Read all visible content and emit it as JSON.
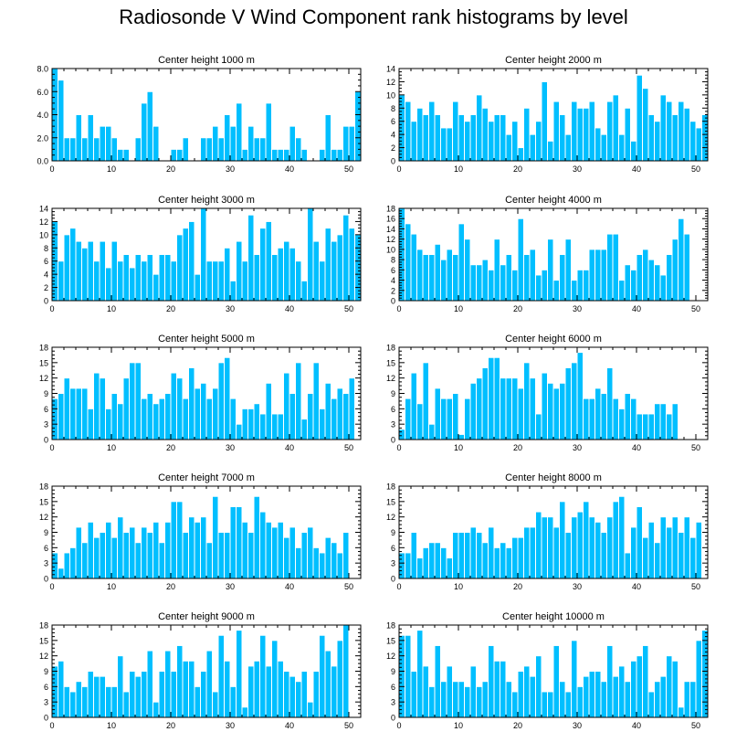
{
  "title": "Radiosonde V Wind Component rank histograms by level",
  "colors": {
    "bar": "#00BFFF",
    "bar_edge": "#ffffff",
    "axis": "#000000"
  },
  "chart_data": [
    {
      "type": "bar",
      "title": "Center height 1000 m",
      "xlim": [
        0,
        52
      ],
      "ylim": [
        0,
        8
      ],
      "yticks": [
        0,
        2,
        4,
        6,
        8
      ],
      "ytick_labels": [
        "0.0",
        "2.0",
        "4.0",
        "6.0",
        "8.0"
      ],
      "xticks": [
        0,
        10,
        20,
        30,
        40,
        50
      ],
      "values": [
        8,
        7,
        2,
        2,
        4,
        2,
        4,
        2,
        3,
        3,
        2,
        1,
        1,
        0,
        2,
        5,
        6,
        3,
        0,
        0,
        1,
        1,
        2,
        0,
        0,
        2,
        2,
        3,
        2,
        4,
        3,
        5,
        1,
        3,
        2,
        2,
        5,
        1,
        1,
        1,
        3,
        2,
        1,
        0,
        0,
        1,
        4,
        1,
        1,
        3,
        3,
        6
      ]
    },
    {
      "type": "bar",
      "title": "Center height 2000 m",
      "xlim": [
        0,
        52
      ],
      "ylim": [
        0,
        14
      ],
      "yticks": [
        0,
        2,
        4,
        6,
        8,
        10,
        12,
        14
      ],
      "ytick_labels": [
        "0",
        "2",
        "4",
        "6",
        "8",
        "10",
        "12",
        "14"
      ],
      "xticks": [
        0,
        10,
        20,
        30,
        40,
        50
      ],
      "values": [
        10,
        9,
        6,
        8,
        7,
        9,
        7,
        5,
        5,
        9,
        7,
        6,
        7,
        10,
        8,
        6,
        7,
        7,
        4,
        6,
        2,
        8,
        4,
        6,
        12,
        3,
        9,
        7,
        4,
        9,
        8,
        8,
        9,
        5,
        4,
        9,
        10,
        4,
        8,
        3,
        13,
        11,
        7,
        6,
        10,
        9,
        7,
        9,
        8,
        6,
        5,
        7
      ]
    },
    {
      "type": "bar",
      "title": "Center height 3000 m",
      "xlim": [
        0,
        52
      ],
      "ylim": [
        0,
        14
      ],
      "yticks": [
        0,
        2,
        4,
        6,
        8,
        10,
        12,
        14
      ],
      "ytick_labels": [
        "0",
        "2",
        "4",
        "6",
        "8",
        "10",
        "12",
        "14"
      ],
      "xticks": [
        0,
        10,
        20,
        30,
        40,
        50
      ],
      "values": [
        12,
        6,
        10,
        11,
        9,
        8,
        9,
        6,
        9,
        5,
        9,
        6,
        7,
        5,
        7,
        6,
        7,
        4,
        7,
        7,
        6,
        10,
        11,
        12,
        4,
        14,
        6,
        6,
        6,
        8,
        3,
        9,
        6,
        13,
        7,
        11,
        12,
        7,
        8,
        9,
        8,
        6,
        3,
        14,
        9,
        6,
        11,
        9,
        10,
        13,
        11,
        10
      ]
    },
    {
      "type": "bar",
      "title": "Center height 4000 m",
      "xlim": [
        0,
        52
      ],
      "ylim": [
        0,
        18
      ],
      "yticks": [
        0,
        2,
        4,
        6,
        8,
        10,
        12,
        14,
        16,
        18
      ],
      "ytick_labels": [
        "0",
        "2",
        "4",
        "6",
        "8",
        "10",
        "12",
        "14",
        "16",
        "18"
      ],
      "xticks": [
        0,
        10,
        20,
        30,
        40,
        50
      ],
      "values": [
        18,
        15,
        13,
        10,
        9,
        9,
        11,
        8,
        10,
        9,
        15,
        12,
        7,
        7,
        8,
        6,
        12,
        7,
        9,
        6,
        16,
        9,
        10,
        5,
        6,
        12,
        4,
        9,
        12,
        4,
        6,
        6,
        10,
        10,
        10,
        13,
        13,
        4,
        7,
        6,
        9,
        10,
        8,
        7,
        5,
        9,
        12,
        16,
        13
      ]
    },
    {
      "type": "bar",
      "title": "Center height 5000 m",
      "xlim": [
        0,
        52
      ],
      "ylim": [
        0,
        18
      ],
      "yticks": [
        0,
        3,
        6,
        9,
        12,
        15,
        18
      ],
      "ytick_labels": [
        "0",
        "3",
        "6",
        "9",
        "12",
        "15",
        "18"
      ],
      "xticks": [
        0,
        10,
        20,
        30,
        40,
        50
      ],
      "values": [
        8,
        9,
        12,
        10,
        10,
        10,
        6,
        13,
        12,
        6,
        9,
        7,
        12,
        15,
        15,
        8,
        9,
        7,
        8,
        9,
        13,
        12,
        8,
        14,
        10,
        11,
        8,
        10,
        15,
        16,
        8,
        3,
        6,
        6,
        7,
        5,
        11,
        5,
        5,
        13,
        9,
        15,
        4,
        9,
        15,
        6,
        11,
        8,
        10,
        9,
        12
      ]
    },
    {
      "type": "bar",
      "title": "Center height 6000 m",
      "xlim": [
        0,
        52
      ],
      "ylim": [
        0,
        18
      ],
      "yticks": [
        0,
        3,
        6,
        9,
        12,
        15,
        18
      ],
      "ytick_labels": [
        "0",
        "3",
        "6",
        "9",
        "12",
        "15",
        "18"
      ],
      "xticks": [
        0,
        10,
        20,
        30,
        40,
        50
      ],
      "values": [
        2,
        8,
        13,
        7,
        15,
        3,
        10,
        8,
        8,
        9,
        1,
        8,
        11,
        12,
        14,
        16,
        16,
        12,
        12,
        12,
        10,
        15,
        12,
        5,
        13,
        11,
        10,
        11,
        14,
        15,
        17,
        8,
        8,
        10,
        9,
        14,
        8,
        6,
        9,
        8,
        5,
        5,
        5,
        7,
        7,
        5,
        7
      ]
    },
    {
      "type": "bar",
      "title": "Center height 7000 m",
      "xlim": [
        0,
        52
      ],
      "ylim": [
        0,
        18
      ],
      "yticks": [
        0,
        3,
        6,
        9,
        12,
        15,
        18
      ],
      "ytick_labels": [
        "0",
        "3",
        "6",
        "9",
        "12",
        "15",
        "18"
      ],
      "xticks": [
        0,
        10,
        20,
        30,
        40,
        50
      ],
      "values": [
        5,
        2,
        5,
        6,
        10,
        7,
        11,
        8,
        9,
        11,
        8,
        12,
        9,
        10,
        7,
        10,
        9,
        11,
        7,
        11,
        15,
        15,
        9,
        12,
        11,
        12,
        7,
        16,
        9,
        9,
        14,
        14,
        11,
        9,
        16,
        13,
        11,
        10,
        11,
        8,
        10,
        6,
        9,
        10,
        6,
        5,
        8,
        7,
        5,
        9
      ]
    },
    {
      "type": "bar",
      "title": "Center height 8000 m",
      "xlim": [
        0,
        52
      ],
      "ylim": [
        0,
        18
      ],
      "yticks": [
        0,
        3,
        6,
        9,
        12,
        15,
        18
      ],
      "ytick_labels": [
        "0",
        "3",
        "6",
        "9",
        "12",
        "15",
        "18"
      ],
      "xticks": [
        0,
        10,
        20,
        30,
        40,
        50
      ],
      "values": [
        5,
        5,
        9,
        4,
        6,
        7,
        7,
        6,
        4,
        9,
        9,
        9,
        10,
        9,
        7,
        10,
        6,
        7,
        6,
        8,
        8,
        10,
        10,
        13,
        12,
        12,
        10,
        15,
        9,
        12,
        13,
        15,
        12,
        11,
        9,
        12,
        15,
        16,
        5,
        10,
        14,
        8,
        11,
        7,
        12,
        10,
        12,
        9,
        12,
        8,
        11
      ]
    },
    {
      "type": "bar",
      "title": "Center height 9000 m",
      "xlim": [
        0,
        52
      ],
      "ylim": [
        0,
        18
      ],
      "yticks": [
        0,
        3,
        6,
        9,
        12,
        15,
        18
      ],
      "ytick_labels": [
        "0",
        "3",
        "6",
        "9",
        "12",
        "15",
        "18"
      ],
      "xticks": [
        0,
        10,
        20,
        30,
        40,
        50
      ],
      "values": [
        10,
        11,
        6,
        5,
        7,
        6,
        9,
        8,
        8,
        6,
        6,
        12,
        5,
        9,
        8,
        9,
        13,
        3,
        9,
        13,
        9,
        14,
        11,
        11,
        6,
        9,
        13,
        5,
        16,
        11,
        6,
        17,
        2,
        10,
        11,
        16,
        10,
        15,
        11,
        9,
        8,
        7,
        9,
        3,
        9,
        16,
        13,
        10,
        15,
        18
      ]
    },
    {
      "type": "bar",
      "title": "Center height 10000 m",
      "xlim": [
        0,
        52
      ],
      "ylim": [
        0,
        18
      ],
      "yticks": [
        0,
        3,
        6,
        9,
        12,
        15,
        18
      ],
      "ytick_labels": [
        "0",
        "3",
        "6",
        "9",
        "12",
        "15",
        "18"
      ],
      "xticks": [
        0,
        10,
        20,
        30,
        40,
        50
      ],
      "values": [
        16,
        16,
        9,
        17,
        10,
        6,
        14,
        7,
        10,
        7,
        7,
        6,
        10,
        6,
        7,
        14,
        11,
        11,
        7,
        5,
        9,
        10,
        8,
        12,
        5,
        5,
        14,
        7,
        5,
        15,
        6,
        8,
        9,
        9,
        7,
        14,
        8,
        10,
        7,
        11,
        12,
        14,
        5,
        7,
        8,
        12,
        11,
        2,
        7,
        7,
        15,
        17
      ]
    }
  ]
}
